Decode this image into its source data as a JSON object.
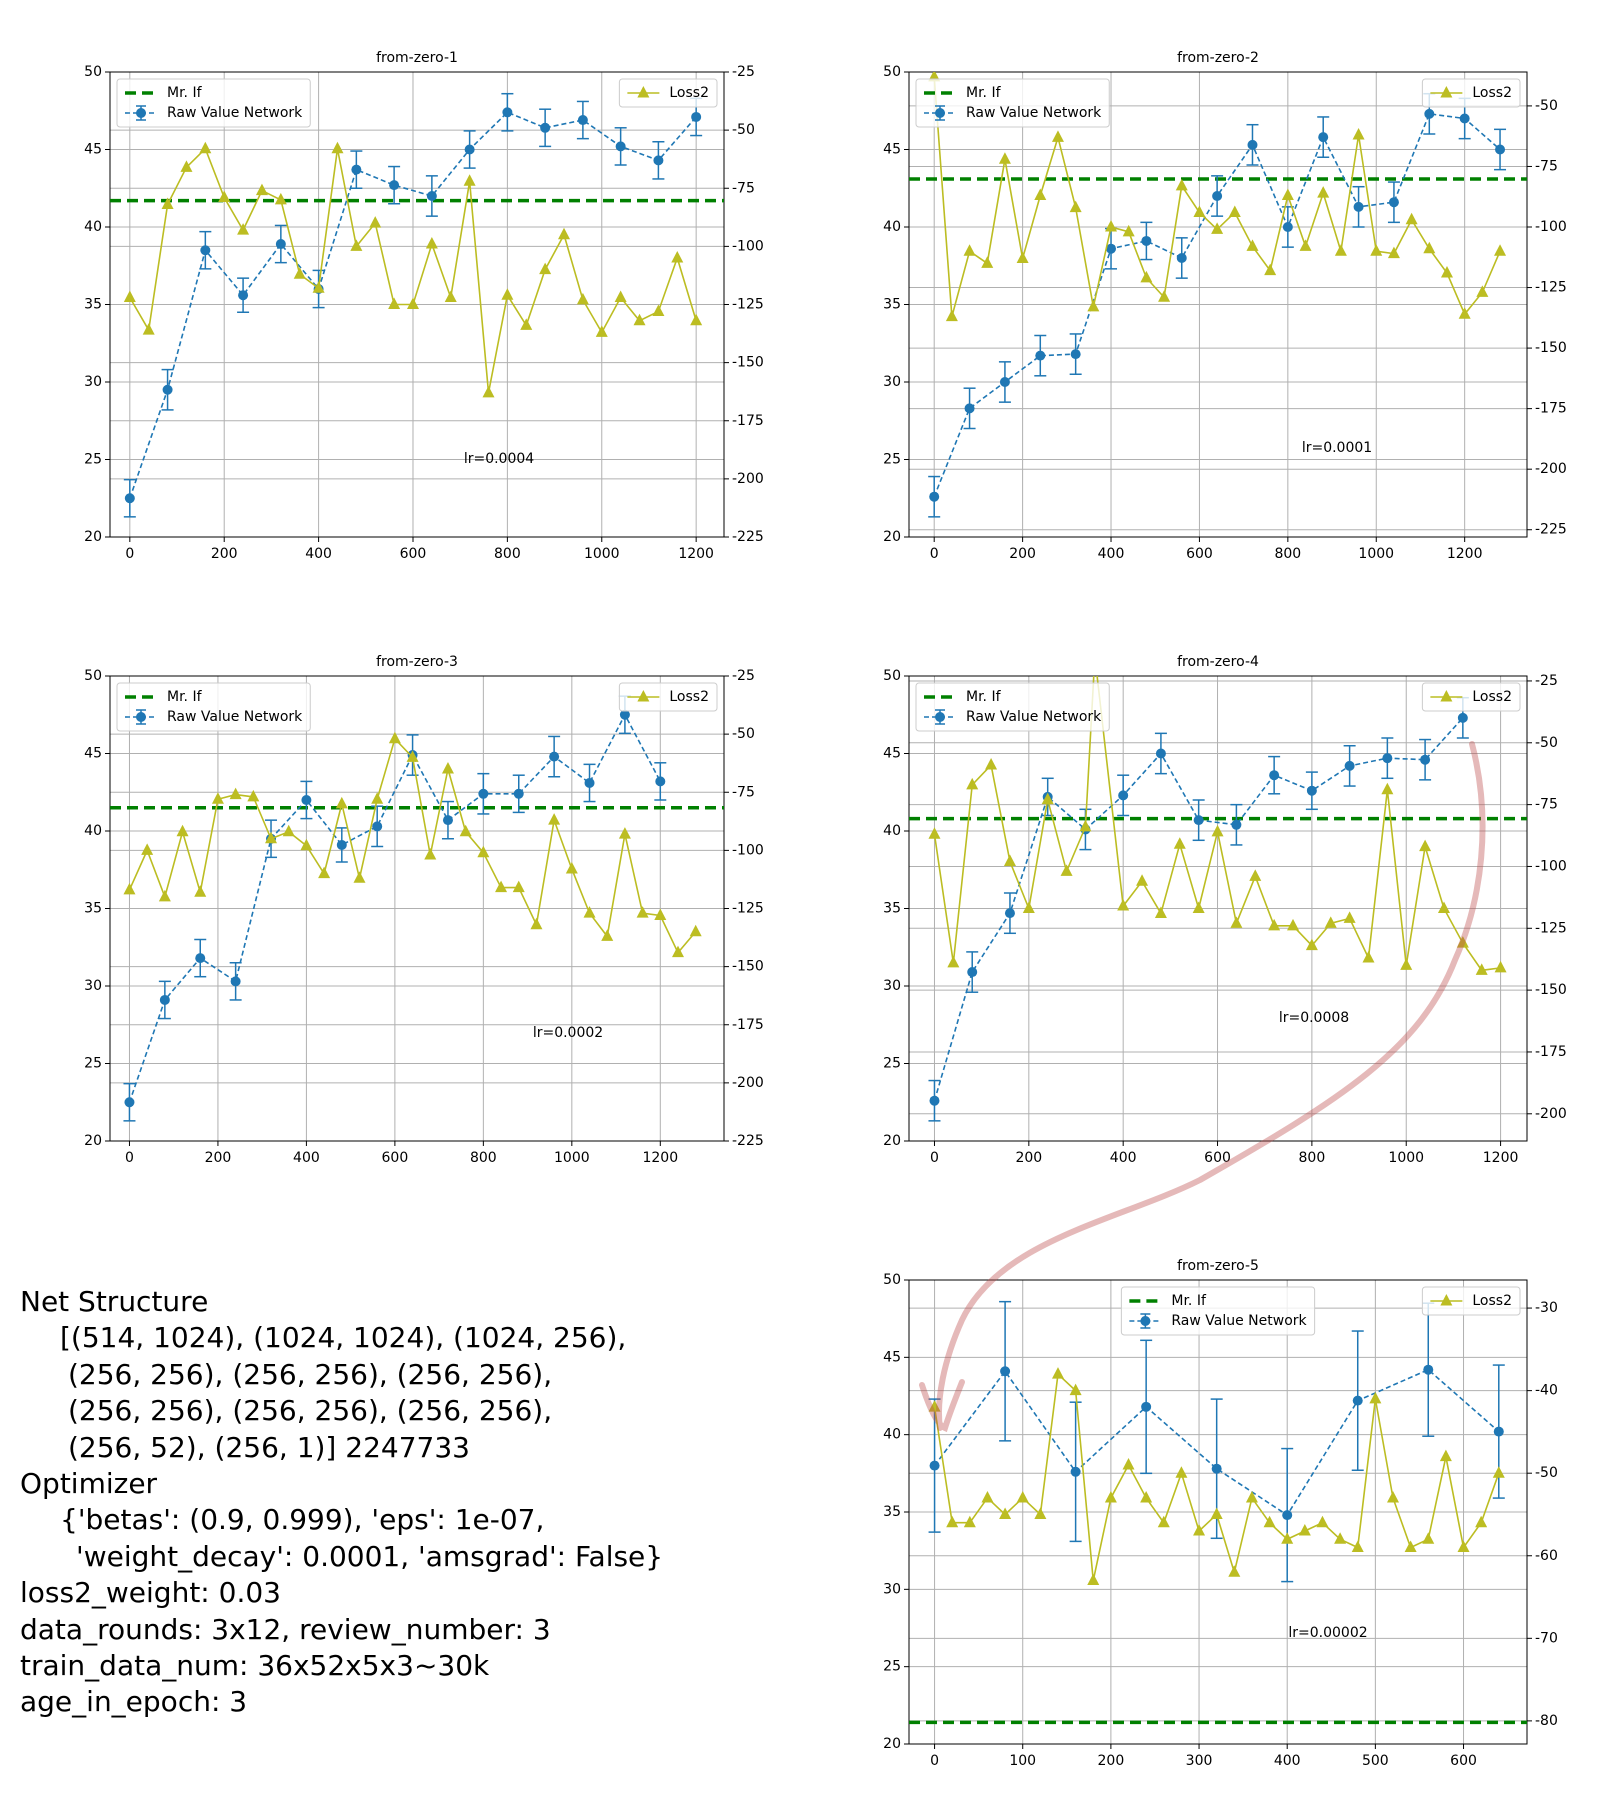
{
  "chart_data": [
    {
      "type": "line",
      "title": "from-zero-1",
      "annotation": "lr=0.0004",
      "grid": true,
      "legend": "upper left",
      "legend2": "upper right",
      "xlim": [
        -42,
        1259
      ],
      "xticks": [
        0,
        200,
        400,
        600,
        800,
        1000,
        1200
      ],
      "ylim": [
        20,
        50
      ],
      "yticks": [
        20,
        25,
        30,
        35,
        40,
        45,
        50
      ],
      "y2lim": [
        -225,
        -25
      ],
      "y2ticks": [
        -225,
        -200,
        -175,
        -150,
        -125,
        -100,
        -75,
        -50,
        -25
      ],
      "series": [
        {
          "name": "Mr. If",
          "color": "#008000",
          "style": "hline",
          "value": 41.7
        },
        {
          "name": "Raw Value Network",
          "color": "#1f77b4",
          "style": "dashed",
          "marker": "circle",
          "x": [
            0,
            80,
            160,
            240,
            320,
            400,
            480,
            560,
            640,
            720,
            800,
            880,
            960,
            1040,
            1120,
            1200
          ],
          "values": [
            22.5,
            29.5,
            38.5,
            35.6,
            38.9,
            36,
            43.7,
            42.7,
            42,
            45,
            47.4,
            46.4,
            46.9,
            45.2,
            44.3,
            47.1
          ],
          "errors": [
            1.2,
            1.3,
            1.2,
            1.1,
            1.2,
            1.2,
            1.2,
            1.2,
            1.3,
            1.2,
            1.2,
            1.2,
            1.2,
            1.2,
            1.2,
            1.2
          ]
        },
        {
          "name": "Loss2",
          "color": "#bcbd22",
          "style": "solid",
          "marker": "triangle",
          "axis": "y2",
          "x": [
            0,
            40,
            80,
            120,
            160,
            200,
            240,
            280,
            320,
            360,
            400,
            440,
            480,
            520,
            560,
            600,
            640,
            680,
            720,
            760,
            800,
            840,
            880,
            920,
            960,
            1000,
            1040,
            1080,
            1120,
            1160,
            1200
          ],
          "values": [
            -122,
            -136,
            -82,
            -66,
            -58,
            -79,
            -93,
            -76,
            -80,
            -112,
            -118,
            -58,
            -100,
            -90,
            -125,
            -125,
            -99,
            -122,
            -72,
            -163,
            -121,
            -134,
            -110,
            -95,
            -123,
            -137,
            -122,
            -132,
            -128,
            -105,
            -132
          ]
        }
      ]
    },
    {
      "type": "line",
      "title": "from-zero-2",
      "annotation": "lr=0.0001",
      "grid": true,
      "legend": "upper left",
      "legend2": "upper right",
      "xlim": [
        -57,
        1341
      ],
      "xticks": [
        0,
        200,
        400,
        600,
        800,
        1000,
        1200
      ],
      "ylim": [
        20,
        50
      ],
      "yticks": [
        20,
        25,
        30,
        35,
        40,
        45,
        50
      ],
      "y2lim": [
        -228,
        -36
      ],
      "y2ticks": [
        -225,
        -200,
        -175,
        -150,
        -125,
        -100,
        -75,
        -50
      ],
      "series": [
        {
          "name": "Mr. If",
          "color": "#008000",
          "style": "hline",
          "value": 43.1
        },
        {
          "name": "Raw Value Network",
          "color": "#1f77b4",
          "style": "dashed",
          "marker": "circle",
          "x": [
            0,
            80,
            160,
            240,
            320,
            400,
            480,
            560,
            640,
            720,
            800,
            880,
            960,
            1040,
            1120,
            1200,
            1280
          ],
          "values": [
            22.6,
            28.3,
            30,
            31.7,
            31.8,
            38.6,
            39.1,
            38,
            42,
            45.3,
            40,
            45.8,
            41.3,
            41.6,
            47.3,
            47,
            45
          ],
          "errors": [
            1.3,
            1.3,
            1.3,
            1.3,
            1.3,
            1.3,
            1.2,
            1.3,
            1.3,
            1.3,
            1.3,
            1.3,
            1.3,
            1.3,
            1.3,
            1.3,
            1.3
          ]
        },
        {
          "name": "Loss2",
          "color": "#bcbd22",
          "style": "solid",
          "marker": "triangle",
          "axis": "y2",
          "x": [
            0,
            40,
            80,
            120,
            160,
            200,
            240,
            280,
            320,
            360,
            400,
            440,
            480,
            520,
            560,
            600,
            640,
            680,
            720,
            760,
            800,
            840,
            880,
            920,
            960,
            1000,
            1040,
            1080,
            1120,
            1160,
            1200,
            1240,
            1280
          ],
          "values": [
            -38,
            -137,
            -110,
            -115,
            -72,
            -113,
            -87,
            -63,
            -92,
            -133,
            -100,
            -102,
            -121,
            -129,
            -83,
            -94,
            -101,
            -94,
            -108,
            -118,
            -87,
            -108,
            -86,
            -110,
            -62,
            -110,
            -111,
            -97,
            -109,
            -119,
            -136,
            -127,
            -110
          ]
        }
      ]
    },
    {
      "type": "line",
      "title": "from-zero-3",
      "annotation": "lr=0.0002",
      "grid": true,
      "legend": "upper left",
      "legend2": "upper right",
      "xlim": [
        -44,
        1344
      ],
      "xticks": [
        0,
        200,
        400,
        600,
        800,
        1000,
        1200
      ],
      "ylim": [
        20,
        50
      ],
      "yticks": [
        20,
        25,
        30,
        35,
        40,
        45,
        50
      ],
      "y2lim": [
        -225,
        -25
      ],
      "y2ticks": [
        -225,
        -200,
        -175,
        -150,
        -125,
        -100,
        -75,
        -50,
        -25
      ],
      "series": [
        {
          "name": "Mr. If",
          "color": "#008000",
          "style": "hline",
          "value": 41.5
        },
        {
          "name": "Raw Value Network",
          "color": "#1f77b4",
          "style": "dashed",
          "marker": "circle",
          "x": [
            0,
            80,
            160,
            240,
            320,
            400,
            480,
            560,
            640,
            720,
            800,
            880,
            960,
            1040,
            1120,
            1200
          ],
          "values": [
            22.5,
            29.1,
            31.8,
            30.3,
            39.5,
            42,
            39.1,
            40.3,
            44.9,
            40.7,
            42.4,
            42.4,
            44.8,
            43.1,
            47.5,
            43.2
          ],
          "errors": [
            1.2,
            1.2,
            1.2,
            1.2,
            1.2,
            1.2,
            1.1,
            1.3,
            1.3,
            1.2,
            1.3,
            1.2,
            1.3,
            1.2,
            1.2,
            1.2
          ]
        },
        {
          "name": "Loss2",
          "color": "#bcbd22",
          "style": "solid",
          "marker": "triangle",
          "axis": "y2",
          "x": [
            0,
            40,
            80,
            120,
            160,
            200,
            240,
            280,
            320,
            360,
            400,
            440,
            480,
            520,
            560,
            600,
            640,
            680,
            720,
            760,
            800,
            840,
            880,
            920,
            960,
            1000,
            1040,
            1080,
            1120,
            1160,
            1200,
            1240,
            1280
          ],
          "values": [
            -117,
            -100,
            -120,
            -92,
            -118,
            -78,
            -76,
            -77,
            -95,
            -92,
            -98,
            -110,
            -80,
            -112,
            -78,
            -52,
            -60,
            -102,
            -65,
            -92,
            -101,
            -116,
            -116,
            -132,
            -87,
            -108,
            -127,
            -137,
            -93,
            -127,
            -128,
            -144,
            -135
          ]
        }
      ]
    },
    {
      "type": "line",
      "title": "from-zero-4",
      "annotation": "lr=0.0008",
      "grid": true,
      "legend": "upper left",
      "legend2": "upper right",
      "xlim": [
        -54,
        1256
      ],
      "xticks": [
        0,
        200,
        400,
        600,
        800,
        1000,
        1200
      ],
      "ylim": [
        20,
        50
      ],
      "yticks": [
        20,
        25,
        30,
        35,
        40,
        45,
        50
      ],
      "y2lim": [
        -211,
        -23
      ],
      "y2ticks": [
        -200,
        -175,
        -150,
        -125,
        -100,
        -75,
        -50,
        -25
      ],
      "series": [
        {
          "name": "Mr. If",
          "color": "#008000",
          "style": "hline",
          "value": 40.8
        },
        {
          "name": "Raw Value Network",
          "color": "#1f77b4",
          "style": "dashed",
          "marker": "circle",
          "x": [
            0,
            80,
            160,
            240,
            320,
            400,
            480,
            560,
            640,
            720,
            800,
            880,
            960,
            1040,
            1120
          ],
          "values": [
            22.6,
            30.9,
            34.7,
            42.2,
            40.1,
            42.3,
            45,
            40.7,
            40.4,
            43.6,
            42.6,
            44.2,
            44.7,
            44.6,
            47.3
          ],
          "errors": [
            1.3,
            1.3,
            1.3,
            1.2,
            1.3,
            1.3,
            1.3,
            1.3,
            1.3,
            1.2,
            1.2,
            1.3,
            1.3,
            1.3,
            1.3
          ]
        },
        {
          "name": "Loss2",
          "color": "#bcbd22",
          "style": "solid",
          "marker": "triangle",
          "axis": "y2",
          "x": [
            0,
            40,
            80,
            120,
            160,
            200,
            240,
            280,
            320,
            340,
            400,
            440,
            480,
            520,
            560,
            600,
            640,
            680,
            720,
            760,
            800,
            840,
            880,
            920,
            960,
            1000,
            1040,
            1080,
            1120,
            1160,
            1200
          ],
          "values": [
            -87,
            -139,
            -67,
            -59,
            -98,
            -117,
            -73,
            -102,
            -84,
            -15,
            -116,
            -106,
            -119,
            -91,
            -117,
            -86,
            -123,
            -104,
            -124,
            -124,
            -132,
            -123,
            -121,
            -137,
            -69,
            -140,
            -92,
            -117,
            -131,
            -142,
            -141
          ]
        }
      ]
    },
    {
      "type": "line",
      "title": "from-zero-5",
      "annotation": "lr=0.00002",
      "grid": true,
      "legend": "upper center",
      "legend2": "upper right",
      "xlim": [
        -29,
        672
      ],
      "xticks": [
        0,
        100,
        200,
        300,
        400,
        500,
        600
      ],
      "ylim": [
        20,
        50
      ],
      "yticks": [
        20,
        25,
        30,
        35,
        40,
        45,
        50
      ],
      "y2lim": [
        -82.8,
        -26.6
      ],
      "y2ticks": [
        -80,
        -70,
        -60,
        -50,
        -40,
        -30
      ],
      "series": [
        {
          "name": "Mr. If",
          "color": "#008000",
          "style": "hline",
          "value": 21.4
        },
        {
          "name": "Raw Value Network",
          "color": "#1f77b4",
          "style": "dashed",
          "marker": "circle",
          "x": [
            0,
            80,
            160,
            240,
            320,
            400,
            480,
            560,
            640
          ],
          "values": [
            38,
            44.1,
            37.6,
            41.8,
            37.8,
            34.8,
            42.2,
            44.2,
            40.2
          ],
          "errors": [
            4.3,
            4.5,
            4.5,
            4.3,
            4.5,
            4.3,
            4.5,
            4.3,
            4.3
          ]
        },
        {
          "name": "Loss2",
          "color": "#bcbd22",
          "style": "solid",
          "marker": "triangle",
          "axis": "y2",
          "x": [
            0,
            20,
            40,
            60,
            80,
            100,
            120,
            140,
            160,
            180,
            200,
            220,
            240,
            260,
            280,
            300,
            320,
            340,
            360,
            380,
            400,
            420,
            440,
            460,
            480,
            500,
            520,
            540,
            560,
            580,
            600,
            620,
            640
          ],
          "values": [
            -42,
            -56,
            -56,
            -53,
            -55,
            -53,
            -55,
            -38,
            -40,
            -63,
            -53,
            -49,
            -53,
            -56,
            -50,
            -57,
            -55,
            -62,
            -53,
            -56,
            -58,
            -57,
            -56,
            -58,
            -59,
            -41,
            -53,
            -59,
            -58,
            -48,
            -59,
            -56,
            -50
          ]
        }
      ]
    }
  ],
  "text_block": {
    "lines": [
      "Net Structure",
      "[(514, 1024), (1024, 1024), (1024, 256),",
      "(256, 256), (256, 256), (256, 256),",
      "(256, 256), (256, 256), (256, 256),",
      "(256, 52), (256, 1)] 2247733",
      "Optimizer",
      "{'betas': (0.9, 0.999), 'eps': 1e-07,",
      "'weight_decay': 0.0001, 'amsgrad': False}",
      "loss2_weight: 0.03",
      "data_rounds: 3x12, review_number: 3",
      "train_data_num: 36x52x5x3~30k",
      "age_in_epoch: 3"
    ]
  }
}
